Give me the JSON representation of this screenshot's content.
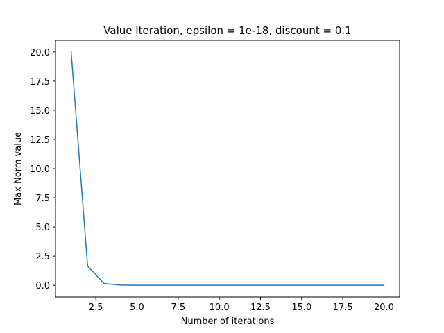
{
  "chart_data": {
    "type": "line",
    "title": "Value Iteration, epsilon = 1e-18, discount = 0.1",
    "xlabel": "Number of iterations",
    "ylabel": "Max Norm value",
    "xlim": [
      0.05,
      20.95
    ],
    "ylim": [
      -1.0,
      21.0
    ],
    "xticks": [
      2.5,
      5.0,
      7.5,
      10.0,
      12.5,
      15.0,
      17.5,
      20.0
    ],
    "xtick_labels": [
      "2.5",
      "5.0",
      "7.5",
      "10.0",
      "12.5",
      "15.0",
      "17.5",
      "20.0"
    ],
    "yticks": [
      0.0,
      2.5,
      5.0,
      7.5,
      10.0,
      12.5,
      15.0,
      17.5,
      20.0
    ],
    "ytick_labels": [
      "0.0",
      "2.5",
      "5.0",
      "7.5",
      "10.0",
      "12.5",
      "15.0",
      "17.5",
      "20.0"
    ],
    "grid": false,
    "series": [
      {
        "color": "#1f77b4",
        "x": [
          1,
          2,
          3,
          4,
          5,
          6,
          7,
          8,
          9,
          10,
          11,
          12,
          13,
          14,
          15,
          16,
          17,
          18,
          19,
          20
        ],
        "values": [
          20.0,
          1.65,
          0.15,
          0.015,
          0.0015,
          0.00015,
          2e-05,
          0,
          0,
          0,
          0,
          0,
          0,
          0,
          0,
          0,
          0,
          0,
          0,
          0
        ]
      }
    ]
  }
}
